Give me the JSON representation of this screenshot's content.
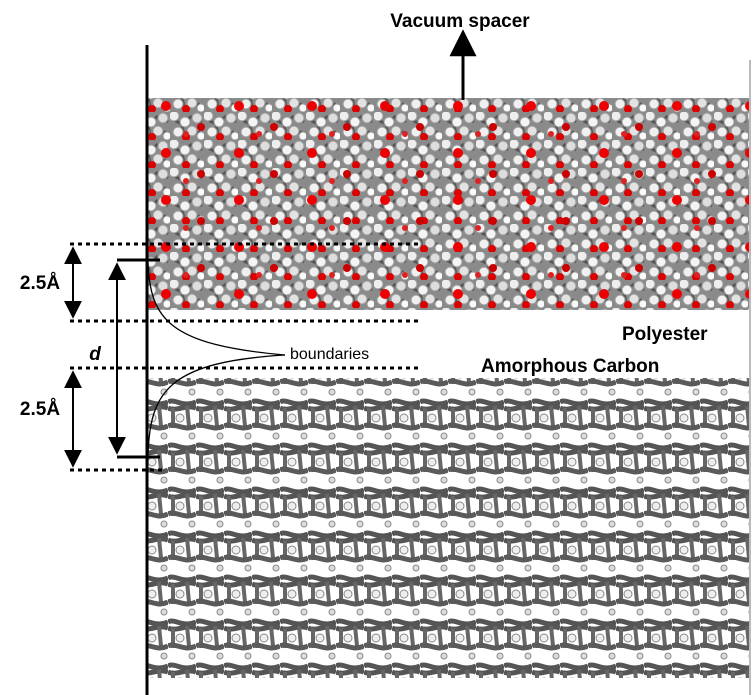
{
  "labels": {
    "vacuum_spacer": "Vacuum spacer",
    "top_spacing": "2.5Å",
    "distance": "d",
    "boundaries": "boundaries",
    "polyester": "Polyester",
    "amorphous_carbon": "Amorphous Carbon",
    "bottom_spacing": "2.5Å"
  }
}
